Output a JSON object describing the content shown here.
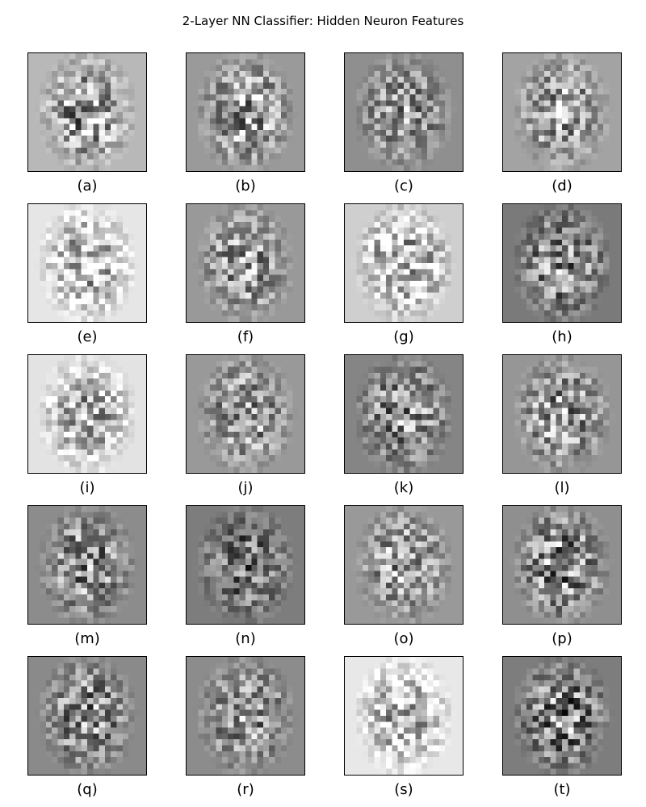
{
  "title": "2-Layer NN Classifier: Hidden Neuron Features",
  "image": {
    "grid_rows": 5,
    "grid_cols": 4,
    "pixels_per_side": 20,
    "colormap": "grayscale"
  },
  "panels": [
    {
      "label": "(a)",
      "bg": "#b8b8b8",
      "seed": 11,
      "contrast": 0.85,
      "bias": -0.25
    },
    {
      "label": "(b)",
      "bg": "#9a9a9a",
      "seed": 22,
      "contrast": 0.8,
      "bias": 0.05
    },
    {
      "label": "(c)",
      "bg": "#8f8f8f",
      "seed": 33,
      "contrast": 0.7,
      "bias": 0.05
    },
    {
      "label": "(d)",
      "bg": "#a3a3a3",
      "seed": 44,
      "contrast": 0.75,
      "bias": -0.05
    },
    {
      "label": "(e)",
      "bg": "#e6e6e6",
      "seed": 55,
      "contrast": 0.8,
      "bias": -0.35
    },
    {
      "label": "(f)",
      "bg": "#999999",
      "seed": 66,
      "contrast": 0.75,
      "bias": 0.05
    },
    {
      "label": "(g)",
      "bg": "#cfcfcf",
      "seed": 77,
      "contrast": 0.9,
      "bias": -0.2
    },
    {
      "label": "(h)",
      "bg": "#7a7a7a",
      "seed": 88,
      "contrast": 0.8,
      "bias": 0.1
    },
    {
      "label": "(i)",
      "bg": "#e3e3e3",
      "seed": 99,
      "contrast": 0.8,
      "bias": -0.35
    },
    {
      "label": "(j)",
      "bg": "#999999",
      "seed": 110,
      "contrast": 0.75,
      "bias": 0.0
    },
    {
      "label": "(k)",
      "bg": "#858585",
      "seed": 121,
      "contrast": 0.8,
      "bias": 0.05
    },
    {
      "label": "(l)",
      "bg": "#969696",
      "seed": 132,
      "contrast": 0.8,
      "bias": 0.05
    },
    {
      "label": "(m)",
      "bg": "#8c8c8c",
      "seed": 143,
      "contrast": 0.8,
      "bias": 0.05
    },
    {
      "label": "(n)",
      "bg": "#7d7d7d",
      "seed": 154,
      "contrast": 0.7,
      "bias": -0.1
    },
    {
      "label": "(o)",
      "bg": "#999999",
      "seed": 165,
      "contrast": 0.75,
      "bias": 0.05
    },
    {
      "label": "(p)",
      "bg": "#8f8f8f",
      "seed": 176,
      "contrast": 0.9,
      "bias": -0.05
    },
    {
      "label": "(q)",
      "bg": "#8a8a8a",
      "seed": 187,
      "contrast": 0.8,
      "bias": 0.0
    },
    {
      "label": "(r)",
      "bg": "#8c8c8c",
      "seed": 198,
      "contrast": 0.75,
      "bias": 0.05
    },
    {
      "label": "(s)",
      "bg": "#e8e8e8",
      "seed": 209,
      "contrast": 0.8,
      "bias": -0.35
    },
    {
      "label": "(t)",
      "bg": "#7d7d7d",
      "seed": 220,
      "contrast": 0.9,
      "bias": 0.05
    }
  ]
}
